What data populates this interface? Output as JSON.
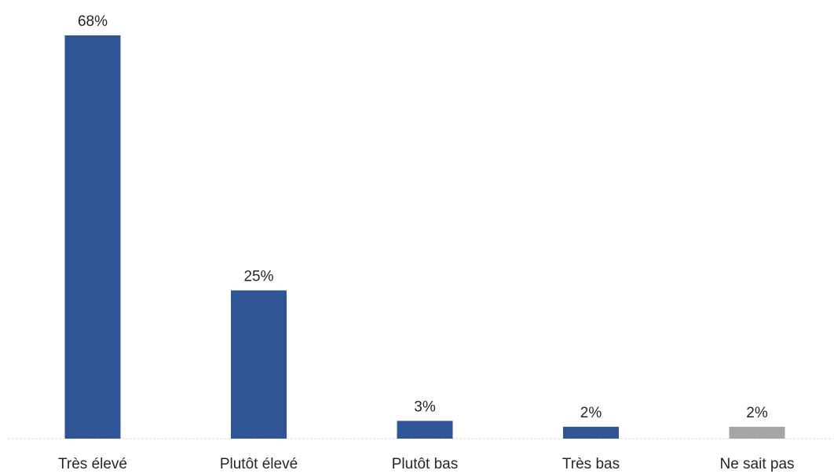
{
  "chart_data": {
    "type": "bar",
    "categories": [
      "Très élevé",
      "Plutôt élevé",
      "Plutôt bas",
      "Très bas",
      "Ne sait pas"
    ],
    "values": [
      68,
      25,
      3,
      2,
      2
    ],
    "data_labels": [
      "68%",
      "25%",
      "3%",
      "2%",
      "2%"
    ],
    "bar_colors": [
      "#2f5597",
      "#2f5597",
      "#2f5597",
      "#2f5597",
      "#a6a6a6"
    ],
    "title": "",
    "xlabel": "",
    "ylabel": "",
    "ylim": [
      0,
      68
    ],
    "grid": false,
    "legend": "none"
  }
}
